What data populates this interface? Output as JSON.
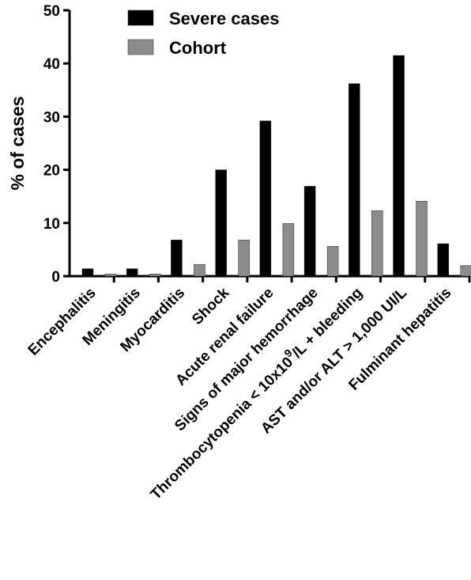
{
  "chart_data": {
    "type": "bar",
    "title": "",
    "xlabel": "",
    "ylabel": "% of cases",
    "ylim": [
      0,
      50
    ],
    "yticks": [
      0,
      10,
      20,
      30,
      40,
      50
    ],
    "grid": false,
    "legend_position": "top",
    "categories": [
      {
        "label": "Encephalitis"
      },
      {
        "label": "Meningitis"
      },
      {
        "label": "Myocarditis"
      },
      {
        "label": "Shock"
      },
      {
        "label": "Acute renal failure"
      },
      {
        "label": "Signs of major hemorrhage"
      },
      {
        "label": "Thrombocytopenia < 10x10",
        "sup": "9",
        "suffix": "/L + bleeding"
      },
      {
        "label": "AST and/or ALT > 1,000 UI/L"
      },
      {
        "label": "Fulminant hepatitis"
      }
    ],
    "series": [
      {
        "name": "Severe cases",
        "color": "#000000",
        "values": [
          1.4,
          1.4,
          6.8,
          20.0,
          29.2,
          16.9,
          36.2,
          41.5,
          6.1
        ]
      },
      {
        "name": "Cohort",
        "color": "#8c8c8c",
        "values": [
          0.4,
          0.4,
          2.2,
          6.8,
          9.9,
          5.6,
          12.3,
          14.1,
          2.0
        ]
      }
    ]
  }
}
